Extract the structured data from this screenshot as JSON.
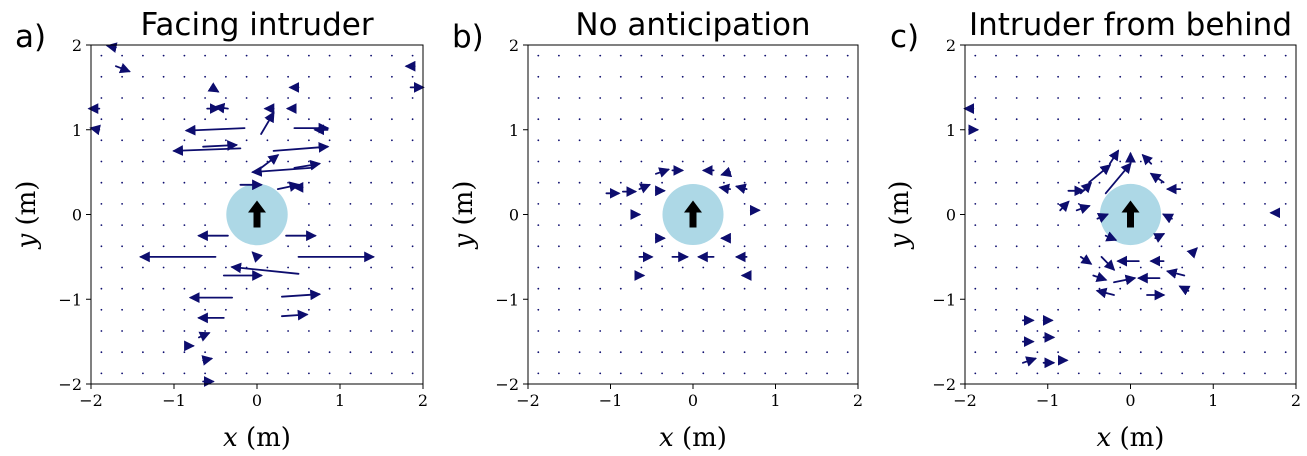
{
  "colors": {
    "arrow": "#0d0d6e",
    "circle": "#add8e6",
    "heading_arrow": "#000000"
  },
  "chart_data": [
    {
      "type": "quiver",
      "panel_label": "a)",
      "title": "Facing intruder",
      "xlabel_var": "x",
      "xlabel_unit": "(m)",
      "ylabel_var": "y",
      "ylabel_unit": "(m)",
      "xlim": [
        -2,
        2
      ],
      "ylim": [
        -2,
        2
      ],
      "xticks": [
        "−2",
        "−1",
        "0",
        "1",
        "2"
      ],
      "yticks": [
        "−2",
        "−1",
        "0",
        "1",
        "2"
      ],
      "obstacle": {
        "center": [
          0,
          0
        ],
        "radius": 0.37,
        "heading": "up"
      },
      "vectors": [
        [
          -1.7,
          1.97,
          -0.1,
          0.02
        ],
        [
          -1.7,
          1.75,
          0.16,
          -0.06
        ],
        [
          -1.9,
          1.25,
          -0.12,
          0.0
        ],
        [
          -1.9,
          1.0,
          -0.1,
          0.02
        ],
        [
          -0.55,
          1.5,
          0.08,
          -0.05
        ],
        [
          -0.6,
          1.25,
          0.14,
          0.0
        ],
        [
          -0.35,
          1.25,
          -0.15,
          0.02
        ],
        [
          0.5,
          1.5,
          -0.1,
          0.0
        ],
        [
          0.2,
          1.25,
          -0.1,
          0.0
        ],
        [
          0.45,
          1.25,
          -0.08,
          0.0
        ],
        [
          -0.15,
          1.02,
          -0.7,
          -0.03
        ],
        [
          0.05,
          0.95,
          0.15,
          0.25
        ],
        [
          0.45,
          1.02,
          0.4,
          0.0
        ],
        [
          0.85,
          1.0,
          -0.15,
          0.0
        ],
        [
          -0.65,
          0.8,
          0.4,
          0.02
        ],
        [
          0.2,
          0.75,
          0.65,
          0.05
        ],
        [
          -0.2,
          0.78,
          -0.8,
          -0.03
        ],
        [
          0.05,
          0.55,
          0.2,
          0.15
        ],
        [
          0.65,
          0.55,
          -0.7,
          -0.05
        ],
        [
          0.45,
          0.55,
          0.3,
          0.05
        ],
        [
          -0.2,
          0.35,
          0.25,
          0.0
        ],
        [
          0.25,
          0.3,
          0.25,
          0.05
        ],
        [
          0.55,
          0.32,
          -0.1,
          0.0
        ],
        [
          -0.35,
          -0.25,
          -0.35,
          0.0
        ],
        [
          0.35,
          -0.25,
          0.35,
          0.0
        ],
        [
          -0.5,
          -0.5,
          -0.9,
          0.0
        ],
        [
          0.5,
          -0.5,
          0.9,
          0.0
        ],
        [
          0.0,
          -0.5,
          -0.05,
          0.05
        ],
        [
          -0.4,
          -0.72,
          0.45,
          0.0
        ],
        [
          0.5,
          -0.7,
          -0.8,
          0.08
        ],
        [
          -0.3,
          -0.98,
          -0.5,
          0.0
        ],
        [
          0.3,
          -0.97,
          0.45,
          0.03
        ],
        [
          -0.4,
          -1.22,
          -0.3,
          0.0
        ],
        [
          0.3,
          -1.2,
          0.3,
          0.02
        ],
        [
          -0.7,
          -1.45,
          0.12,
          0.05
        ],
        [
          -0.65,
          -1.72,
          0.1,
          0.02
        ],
        [
          -0.65,
          -1.97,
          0.12,
          0.0
        ],
        [
          -0.85,
          -1.55,
          0.08,
          0.0
        ],
        [
          1.9,
          1.75,
          -0.1,
          0.0
        ],
        [
          1.85,
          1.5,
          0.15,
          0.0
        ]
      ]
    },
    {
      "type": "quiver",
      "panel_label": "b)",
      "title": "No anticipation",
      "xlabel_var": "x",
      "xlabel_unit": "(m)",
      "ylabel_var": "y",
      "ylabel_unit": "(m)",
      "xlim": [
        -2,
        2
      ],
      "ylim": [
        -2,
        2
      ],
      "xticks": [
        "−2",
        "−1",
        "0",
        "1",
        "2"
      ],
      "yticks": [
        "−2",
        "−1",
        "0",
        "1",
        "2"
      ],
      "obstacle": {
        "center": [
          0,
          0
        ],
        "radius": 0.37,
        "heading": "up"
      },
      "vectors": [
        [
          -0.45,
          0.48,
          0.15,
          0.05
        ],
        [
          -0.25,
          0.52,
          0.12,
          0.0
        ],
        [
          0.25,
          0.52,
          -0.12,
          0.0
        ],
        [
          0.45,
          0.5,
          -0.1,
          -0.03
        ],
        [
          -0.65,
          0.3,
          0.12,
          0.05
        ],
        [
          -0.45,
          0.28,
          0.1,
          0.0
        ],
        [
          0.45,
          0.3,
          -0.12,
          0.02
        ],
        [
          0.65,
          0.3,
          -0.12,
          0.03
        ],
        [
          -1.05,
          0.25,
          0.15,
          0.0
        ],
        [
          -0.85,
          0.27,
          0.15,
          0.0
        ],
        [
          0.7,
          0.05,
          0.1,
          0.0
        ],
        [
          -0.7,
          0.0,
          0.05,
          0.0
        ],
        [
          -0.45,
          -0.28,
          0.1,
          0.0
        ],
        [
          0.45,
          -0.28,
          -0.1,
          0.0
        ],
        [
          -0.65,
          -0.5,
          0.15,
          0.0
        ],
        [
          -0.25,
          -0.5,
          0.18,
          0.0
        ],
        [
          0.25,
          -0.5,
          -0.18,
          0.0
        ],
        [
          0.65,
          -0.5,
          -0.12,
          0.0
        ],
        [
          -0.65,
          -0.72,
          0.05,
          0.0
        ],
        [
          0.65,
          -0.72,
          -0.05,
          0.0
        ]
      ]
    },
    {
      "type": "quiver",
      "panel_label": "c)",
      "title": "Intruder from behind",
      "xlabel_var": "x",
      "xlabel_unit": "(m)",
      "ylabel_var": "y",
      "ylabel_unit": "(m)",
      "xlim": [
        -2,
        2
      ],
      "ylim": [
        -2,
        2
      ],
      "xticks": [
        "−2",
        "−1",
        "0",
        "1",
        "2"
      ],
      "yticks": [
        "−2",
        "−1",
        "0",
        "1",
        "2"
      ],
      "obstacle": {
        "center": [
          0,
          0
        ],
        "radius": 0.37,
        "heading": "up"
      },
      "vectors": [
        [
          -0.3,
          0.25,
          0.3,
          0.35
        ],
        [
          -0.5,
          0.38,
          0.25,
          0.2
        ],
        [
          -0.25,
          0.6,
          0.1,
          0.15
        ],
        [
          0.0,
          0.6,
          0.0,
          0.12
        ],
        [
          0.25,
          0.6,
          -0.1,
          0.1
        ],
        [
          0.4,
          0.38,
          -0.15,
          0.1
        ],
        [
          0.6,
          0.3,
          -0.15,
          0.0
        ],
        [
          -0.6,
          0.25,
          0.12,
          0.12
        ],
        [
          -0.75,
          0.28,
          0.18,
          0.0
        ],
        [
          -0.85,
          0.05,
          0.1,
          0.1
        ],
        [
          -0.65,
          0.05,
          0.15,
          0.05
        ],
        [
          -0.4,
          -0.05,
          0.12,
          0.05
        ],
        [
          0.5,
          -0.05,
          -0.1,
          0.05
        ],
        [
          -0.3,
          -0.25,
          0.12,
          -0.05
        ],
        [
          0.3,
          -0.28,
          0.1,
          0.05
        ],
        [
          -0.6,
          -0.5,
          0.12,
          -0.08
        ],
        [
          -0.35,
          -0.5,
          0.15,
          -0.15
        ],
        [
          0.1,
          -0.55,
          -0.25,
          0.0
        ],
        [
          0.4,
          -0.55,
          -0.15,
          0.0
        ],
        [
          0.75,
          -0.45,
          0.05,
          0.05
        ],
        [
          -0.45,
          -0.72,
          0.15,
          -0.05
        ],
        [
          -0.2,
          -0.8,
          0.25,
          0.05
        ],
        [
          0.35,
          -0.75,
          -0.25,
          0.0
        ],
        [
          0.65,
          -0.72,
          -0.2,
          0.05
        ],
        [
          -0.2,
          -0.95,
          -0.2,
          0.05
        ],
        [
          0.2,
          -0.95,
          0.2,
          0.0
        ],
        [
          0.7,
          -0.9,
          -0.1,
          0.05
        ],
        [
          -1.3,
          -1.25,
          0.12,
          0.0
        ],
        [
          -1.05,
          -1.25,
          0.1,
          0.0
        ],
        [
          -1.3,
          -1.5,
          0.12,
          0.0
        ],
        [
          -1.05,
          -1.45,
          0.12,
          0.0
        ],
        [
          -1.3,
          -1.75,
          0.15,
          0.05
        ],
        [
          -1.05,
          -1.75,
          0.12,
          0.0
        ],
        [
          -0.85,
          -1.72,
          0.08,
          0.0
        ],
        [
          -1.9,
          1.25,
          -0.1,
          0.0
        ],
        [
          -1.95,
          1.0,
          0.1,
          0.0
        ],
        [
          1.75,
          0.02,
          -0.05,
          0.0
        ]
      ]
    }
  ]
}
